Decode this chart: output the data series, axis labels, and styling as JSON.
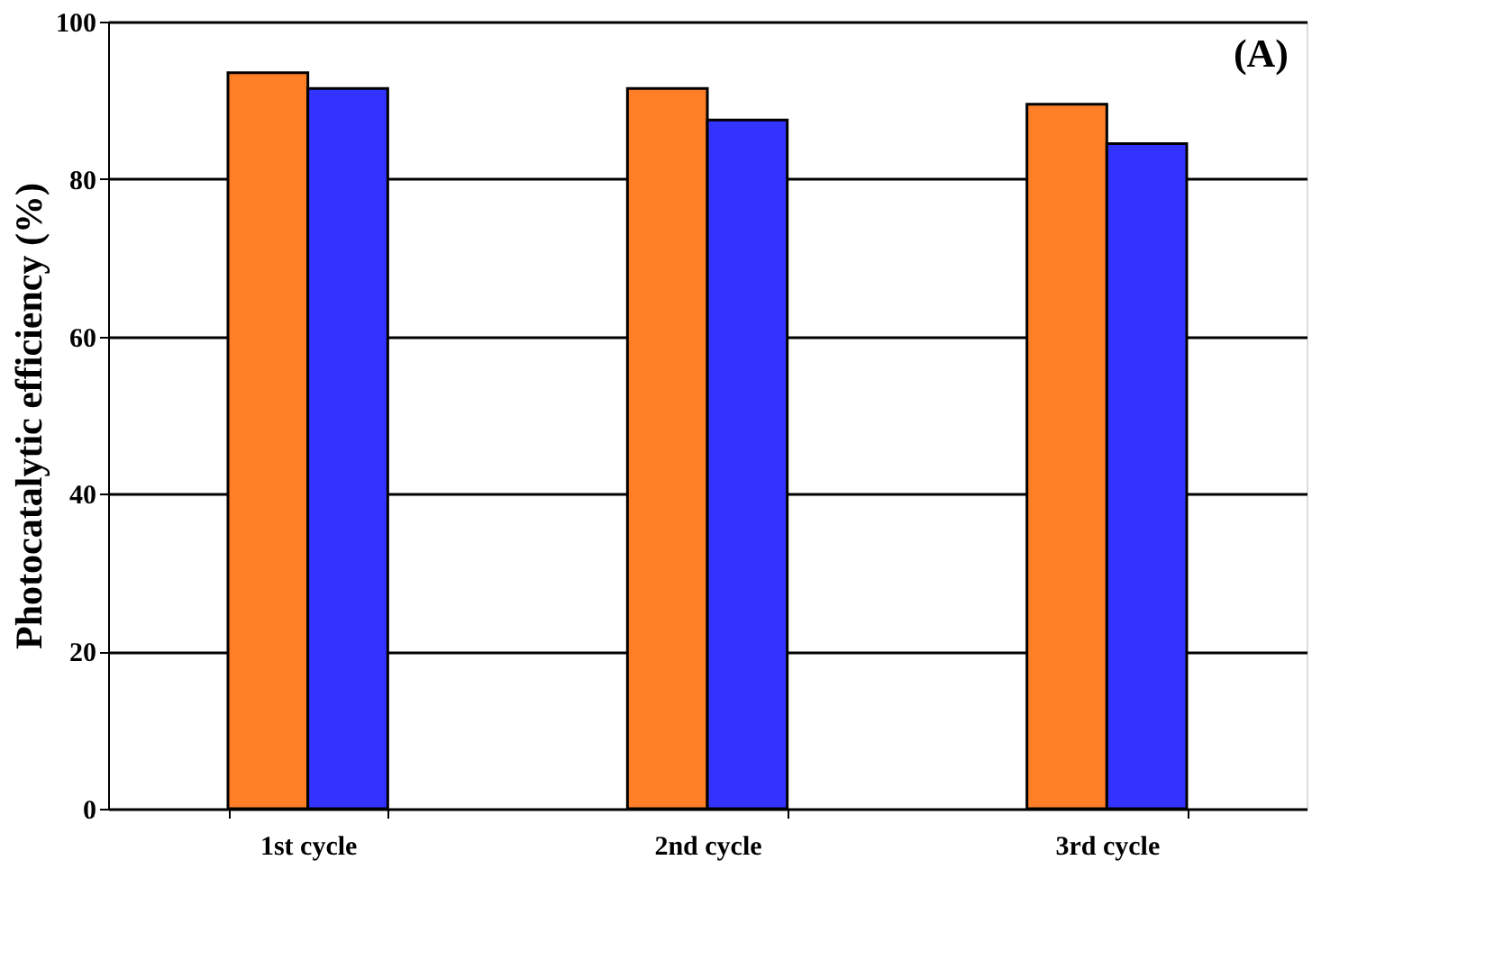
{
  "chart_data": {
    "type": "bar",
    "ylabel": "Photocatalytic efficiency (%)",
    "categories": [
      "1st cycle",
      "2nd cycle",
      "3rd cycle"
    ],
    "series": [
      {
        "color": "#ff7f27",
        "values": [
          93.5,
          91.5,
          89.5
        ]
      },
      {
        "color": "#3333ff",
        "values": [
          91.5,
          87.5,
          84.5
        ]
      }
    ],
    "ylim": [
      0,
      100
    ],
    "yticks": [
      0,
      20,
      40,
      60,
      80,
      100
    ],
    "grid": "y",
    "annotations": [
      "(A)"
    ]
  }
}
